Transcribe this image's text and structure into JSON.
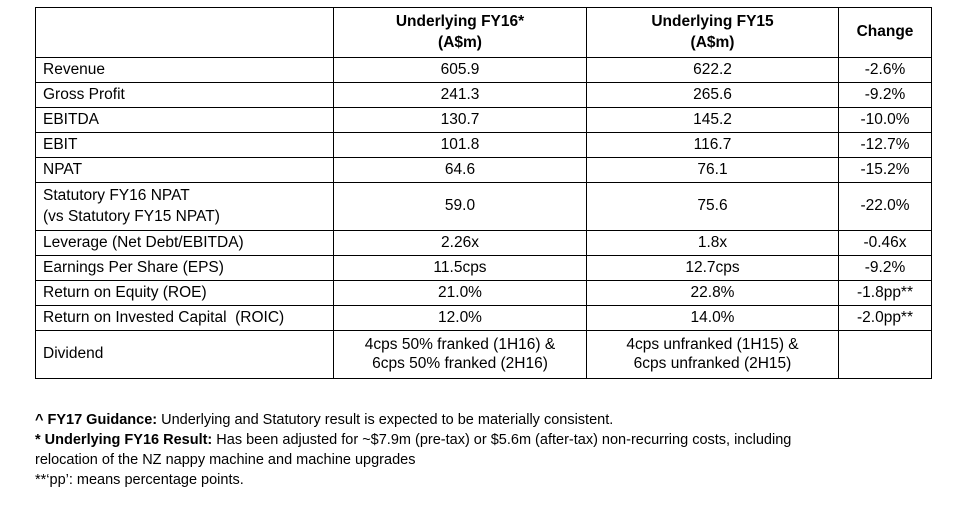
{
  "table": {
    "headers": {
      "metric": "",
      "fy16_line1": "Underlying FY16*",
      "fy16_line2": "(A$m)",
      "fy15_line1": "Underlying FY15",
      "fy15_line2": "(A$m)",
      "change": "Change"
    },
    "rows": [
      {
        "metric": "Revenue",
        "fy16": "605.9",
        "fy15": "622.2",
        "change": "-2.6%"
      },
      {
        "metric": "Gross Profit",
        "fy16": "241.3",
        "fy15": "265.6",
        "change": "-9.2%"
      },
      {
        "metric": "EBITDA",
        "fy16": "130.7",
        "fy15": "145.2",
        "change": "-10.0%"
      },
      {
        "metric": "EBIT",
        "fy16": "101.8",
        "fy15": "116.7",
        "change": "-12.7%"
      },
      {
        "metric": "NPAT",
        "fy16": "64.6",
        "fy15": "76.1",
        "change": "-15.2%"
      },
      {
        "metric_line1": "Statutory FY16 NPAT",
        "metric_line2": "(vs Statutory FY15 NPAT)",
        "fy16": "59.0",
        "fy15": "75.6",
        "change": "-22.0%"
      },
      {
        "metric": "Leverage (Net Debt/EBITDA)",
        "fy16": "2.26x",
        "fy15": "1.8x",
        "change": "-0.46x"
      },
      {
        "metric": "Earnings Per Share (EPS)",
        "fy16": "11.5cps",
        "fy15": "12.7cps",
        "change": "-9.2%"
      },
      {
        "metric": "Return on Equity (ROE)",
        "fy16": "21.0%",
        "fy15": "22.8%",
        "change": "-1.8pp**"
      },
      {
        "metric": "Return on Invested Capital  (ROIC)",
        "fy16": "12.0%",
        "fy15": "14.0%",
        "change": "-2.0pp**"
      },
      {
        "metric": "Dividend",
        "fy16_line1": "4cps 50% franked (1H16) &",
        "fy16_line2": "6cps 50% franked (2H16)",
        "fy15_line1": "4cps unfranked (1H15) &",
        "fy15_line2": "6cps unfranked (2H15)",
        "change": ""
      }
    ]
  },
  "notes": {
    "guidance_label": "^ FY17 Guidance:",
    "guidance_text": " Underlying and Statutory result is expected to be materially consistent.",
    "underlying_label": "* Underlying FY16 Result:",
    "underlying_text_line1": " Has been adjusted for ~$7.9m (pre-tax) or $5.6m (after-tax) non-recurring costs, including",
    "underlying_text_line2": "relocation of the NZ nappy machine and machine upgrades",
    "pp_note": "**‘pp’: means percentage points."
  }
}
